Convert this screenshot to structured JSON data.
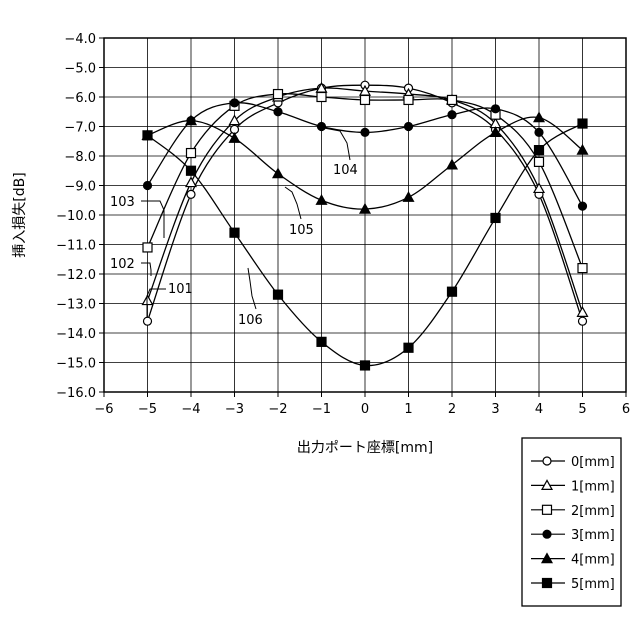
{
  "chart_data": {
    "type": "line",
    "title": "",
    "xlabel": "出力ポート座標[mm]",
    "ylabel": "挿入損失[dB]",
    "xlim": [
      -6,
      6
    ],
    "ylim": [
      -16.0,
      -4.0
    ],
    "x_ticks": [
      -6,
      -5,
      -4,
      -3,
      -2,
      -1,
      0,
      1,
      2,
      3,
      4,
      5,
      6
    ],
    "x_tick_labels": [
      "−6",
      "−5",
      "−4",
      "−3",
      "−2",
      "−1",
      "0",
      "1",
      "2",
      "3",
      "4",
      "5",
      "6"
    ],
    "y_ticks": [
      -4.0,
      -5.0,
      -6.0,
      -7.0,
      -8.0,
      -9.0,
      -10.0,
      -11.0,
      -12.0,
      -13.0,
      -14.0,
      -15.0,
      -16.0
    ],
    "y_tick_labels": [
      "−4.0",
      "−5.0",
      "−6.0",
      "−7.0",
      "−8.0",
      "−9.0",
      "−10.0",
      "−11.0",
      "−12.0",
      "−13.0",
      "−14.0",
      "−15.0",
      "−16.0"
    ],
    "grid": true,
    "legend_position": "bottom-right, outside plot",
    "x": [
      -5,
      -4,
      -3,
      -2,
      -1,
      0,
      1,
      2,
      3,
      4,
      5
    ],
    "series": [
      {
        "name": "0[mm]",
        "marker": "open-circle",
        "values": [
          -13.6,
          -9.3,
          -7.1,
          -6.2,
          -5.7,
          -5.6,
          -5.7,
          -6.2,
          -7.1,
          -9.3,
          -13.6
        ]
      },
      {
        "name": "1[mm]",
        "marker": "open-triangle",
        "values": [
          -12.9,
          -8.9,
          -6.8,
          -6.0,
          -5.7,
          -5.8,
          -5.9,
          -6.1,
          -6.9,
          -9.1,
          -13.3
        ]
      },
      {
        "name": "2[mm]",
        "marker": "open-square",
        "values": [
          -11.1,
          -7.9,
          -6.3,
          -5.9,
          -6.0,
          -6.1,
          -6.1,
          -6.1,
          -6.6,
          -8.2,
          -11.8
        ]
      },
      {
        "name": "3[mm]",
        "marker": "filled-circle",
        "values": [
          -9.0,
          -6.8,
          -6.2,
          -6.5,
          -7.0,
          -7.2,
          -7.0,
          -6.6,
          -6.4,
          -7.2,
          -9.7
        ]
      },
      {
        "name": "4[mm]",
        "marker": "filled-triangle",
        "values": [
          -7.3,
          -6.8,
          -7.4,
          -8.6,
          -9.5,
          -9.8,
          -9.4,
          -8.3,
          -7.2,
          -6.7,
          -7.8
        ]
      },
      {
        "name": "5[mm]",
        "marker": "filled-square",
        "values": [
          -7.3,
          -8.5,
          -10.6,
          -12.7,
          -14.3,
          -15.1,
          -14.5,
          -12.6,
          -10.1,
          -7.8,
          -6.9
        ]
      }
    ],
    "annotations": [
      {
        "text": "101",
        "series": "0[mm]"
      },
      {
        "text": "102",
        "series": "1[mm]"
      },
      {
        "text": "103",
        "series": "2[mm]"
      },
      {
        "text": "104",
        "series": "3[mm]"
      },
      {
        "text": "105",
        "series": "4[mm]"
      },
      {
        "text": "106",
        "series": "5[mm]"
      }
    ]
  }
}
